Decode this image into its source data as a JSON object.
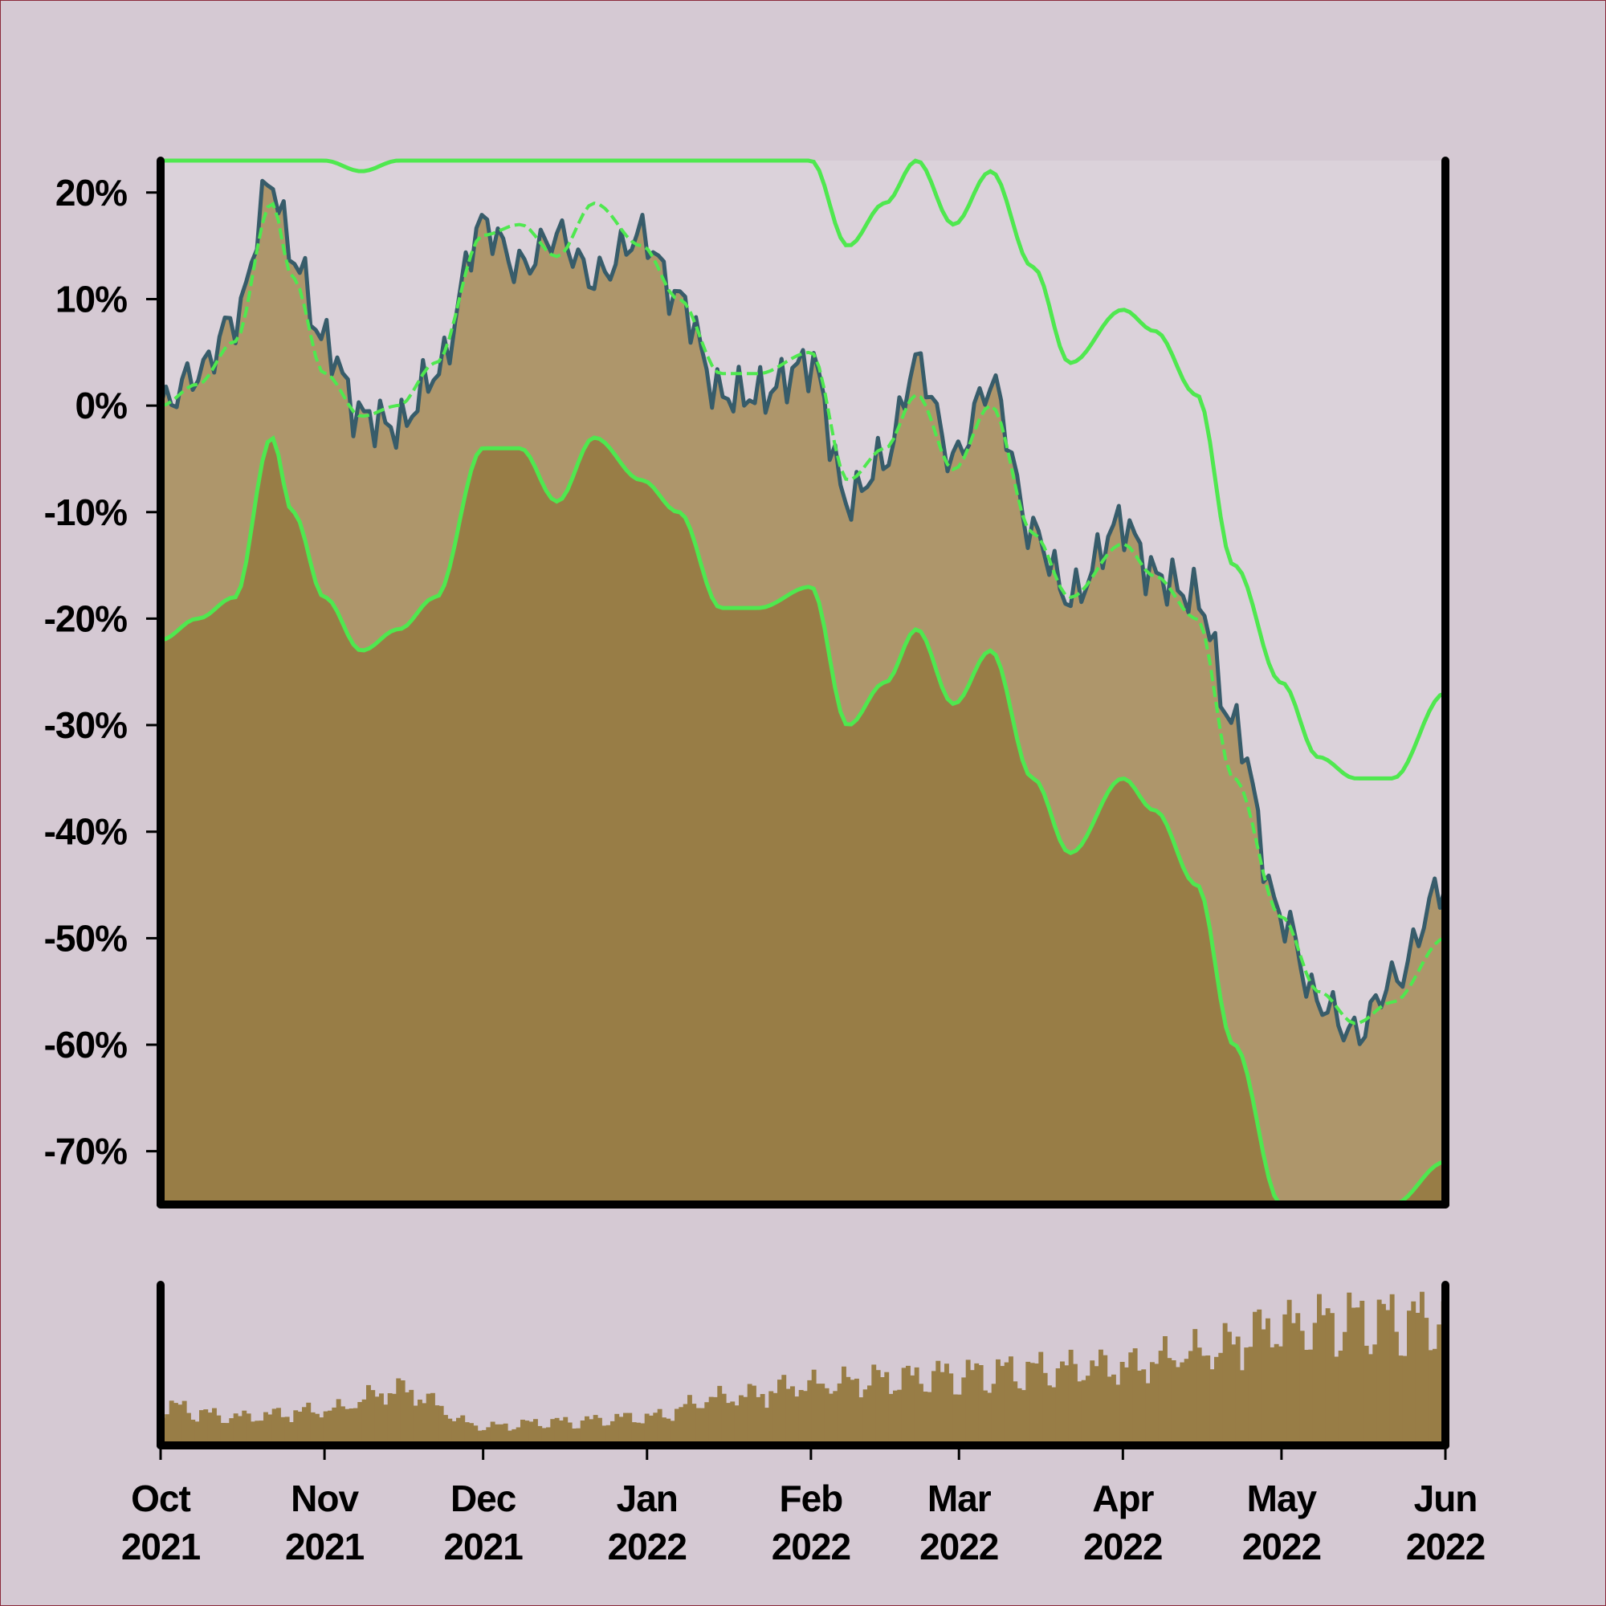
{
  "chart_data": {
    "type": "area",
    "y_axis": {
      "format": "percent",
      "ylim": [
        -75,
        23
      ],
      "ticks": [
        20,
        10,
        0,
        -10,
        -20,
        -30,
        -40,
        -50,
        -60,
        -70
      ],
      "tick_labels": [
        "20%",
        "10%",
        "0%",
        "-10%",
        "-20%",
        "-30%",
        "-40%",
        "-50%",
        "-60%",
        "-70%"
      ]
    },
    "x_axis": {
      "xlim": [
        "2021-10-01",
        "2022-06-01"
      ],
      "ticks": [
        "2021-10-01",
        "2021-11-01",
        "2021-12-01",
        "2022-01-01",
        "2022-02-01",
        "2022-03-01",
        "2022-04-01",
        "2022-05-01",
        "2022-06-01"
      ],
      "tick_labels": [
        [
          "Oct",
          "2021"
        ],
        [
          "Nov",
          "2021"
        ],
        [
          "Dec",
          "2021"
        ],
        [
          "Jan",
          "2022"
        ],
        [
          "Feb",
          "2022"
        ],
        [
          "Mar",
          "2022"
        ],
        [
          "Apr",
          "2022"
        ],
        [
          "May",
          "2022"
        ],
        [
          "Jun",
          "2022"
        ]
      ]
    },
    "grid": false,
    "legend": "none",
    "price_series": {
      "dates": [
        "2021-10-01",
        "2021-10-08",
        "2021-10-15",
        "2021-10-22",
        "2021-10-26",
        "2021-11-01",
        "2021-11-08",
        "2021-11-15",
        "2021-11-22",
        "2021-12-01",
        "2021-12-08",
        "2021-12-15",
        "2021-12-22",
        "2021-12-31",
        "2022-01-07",
        "2022-01-15",
        "2022-01-22",
        "2022-02-01",
        "2022-02-08",
        "2022-02-15",
        "2022-02-21",
        "2022-02-28",
        "2022-03-07",
        "2022-03-15",
        "2022-03-22",
        "2022-04-01",
        "2022-04-07",
        "2022-04-15",
        "2022-04-22",
        "2022-05-01",
        "2022-05-08",
        "2022-05-15",
        "2022-05-22",
        "2022-06-01"
      ],
      "values": [
        0,
        3,
        8,
        21,
        14,
        6,
        -1,
        -2,
        3,
        17,
        13,
        16,
        12,
        16,
        10,
        1,
        1,
        4,
        -9,
        -5,
        4,
        -5,
        2,
        -12,
        -18,
        -11,
        -16,
        -18,
        -30,
        -48,
        -56,
        -59,
        -54,
        -45
      ]
    },
    "bands": {
      "dates": [
        "2021-10-01",
        "2021-10-08",
        "2021-10-15",
        "2021-10-22",
        "2021-10-26",
        "2021-11-01",
        "2021-11-08",
        "2021-11-15",
        "2021-11-22",
        "2021-12-01",
        "2021-12-08",
        "2021-12-15",
        "2021-12-22",
        "2021-12-31",
        "2022-01-07",
        "2022-01-15",
        "2022-01-22",
        "2022-02-01",
        "2022-02-08",
        "2022-02-15",
        "2022-02-21",
        "2022-02-28",
        "2022-03-07",
        "2022-03-15",
        "2022-03-22",
        "2022-04-01",
        "2022-04-07",
        "2022-04-15",
        "2022-04-22",
        "2022-05-01",
        "2022-05-08",
        "2022-05-15",
        "2022-05-22",
        "2022-06-01"
      ],
      "middle": [
        0,
        2,
        6,
        19,
        12,
        3,
        -1,
        0,
        4,
        16,
        17,
        14,
        19,
        15,
        10,
        3,
        3,
        5,
        -7,
        -4,
        1,
        -6,
        0,
        -12,
        -18,
        -13,
        -16,
        -20,
        -35,
        -48,
        -55,
        -58,
        -56,
        -50
      ],
      "upper": [
        23,
        23,
        23,
        23,
        23,
        23,
        22,
        23,
        23,
        23,
        23,
        23,
        23,
        23,
        23,
        23,
        23,
        23,
        15,
        19,
        23,
        17,
        22,
        13,
        4,
        9,
        7,
        1,
        -15,
        -26,
        -33,
        -35,
        -35,
        -27
      ],
      "lower": [
        -22,
        -20,
        -18,
        -3,
        -10,
        -18,
        -23,
        -21,
        -18,
        -4,
        -4,
        -9,
        -3,
        -7,
        -10,
        -19,
        -19,
        -17,
        -30,
        -26,
        -21,
        -28,
        -23,
        -35,
        -42,
        -35,
        -38,
        -45,
        -60,
        -75,
        -75,
        -75,
        -75,
        -71
      ]
    },
    "volume_series": {
      "dates": [
        "2021-10-01",
        "2021-10-15",
        "2021-11-01",
        "2021-11-15",
        "2021-12-01",
        "2021-12-15",
        "2022-01-01",
        "2022-01-15",
        "2022-02-01",
        "2022-02-15",
        "2022-03-01",
        "2022-03-15",
        "2022-04-01",
        "2022-04-15",
        "2022-05-01",
        "2022-05-15",
        "2022-06-01"
      ],
      "values": [
        0.25,
        0.18,
        0.22,
        0.35,
        0.12,
        0.15,
        0.18,
        0.3,
        0.38,
        0.42,
        0.45,
        0.48,
        0.5,
        0.58,
        0.75,
        0.8,
        0.8
      ]
    }
  },
  "colors": {
    "background": "#d5c9d3",
    "plot_background": "#dbd2da",
    "area_outer": "#ae966b",
    "area_inner": "#987d46",
    "price_line": "#375c6a",
    "bands": "#4fe84f",
    "axis": "#000000",
    "frame_border": "#8a2a3a"
  }
}
